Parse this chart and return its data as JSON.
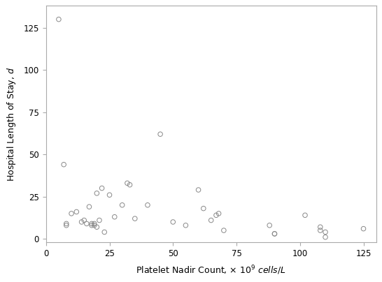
{
  "x": [
    5,
    7,
    8,
    8,
    10,
    12,
    14,
    15,
    16,
    17,
    18,
    18,
    19,
    19,
    20,
    20,
    21,
    22,
    23,
    25,
    27,
    30,
    32,
    33,
    35,
    40,
    45,
    50,
    55,
    60,
    62,
    65,
    67,
    68,
    70,
    88,
    90,
    90,
    102,
    108,
    108,
    110,
    110,
    125
  ],
  "y": [
    130,
    44,
    8,
    9,
    15,
    16,
    10,
    11,
    9,
    19,
    9,
    8,
    8,
    9,
    7,
    27,
    11,
    30,
    4,
    26,
    13,
    20,
    33,
    32,
    12,
    20,
    62,
    10,
    8,
    29,
    18,
    11,
    14,
    15,
    5,
    8,
    3,
    3,
    14,
    7,
    5,
    4,
    1,
    6
  ],
  "xlim": [
    0,
    130
  ],
  "ylim": [
    -2,
    138
  ],
  "xticks": [
    0,
    25,
    50,
    75,
    100,
    125
  ],
  "yticks": [
    0,
    25,
    50,
    75,
    100,
    125
  ],
  "marker_edge_color": "#888888",
  "marker_size": 22,
  "background_color": "#ffffff",
  "spine_color": "#aaaaaa",
  "tick_label_size": 8.5,
  "xlabel_size": 9,
  "ylabel_size": 9
}
